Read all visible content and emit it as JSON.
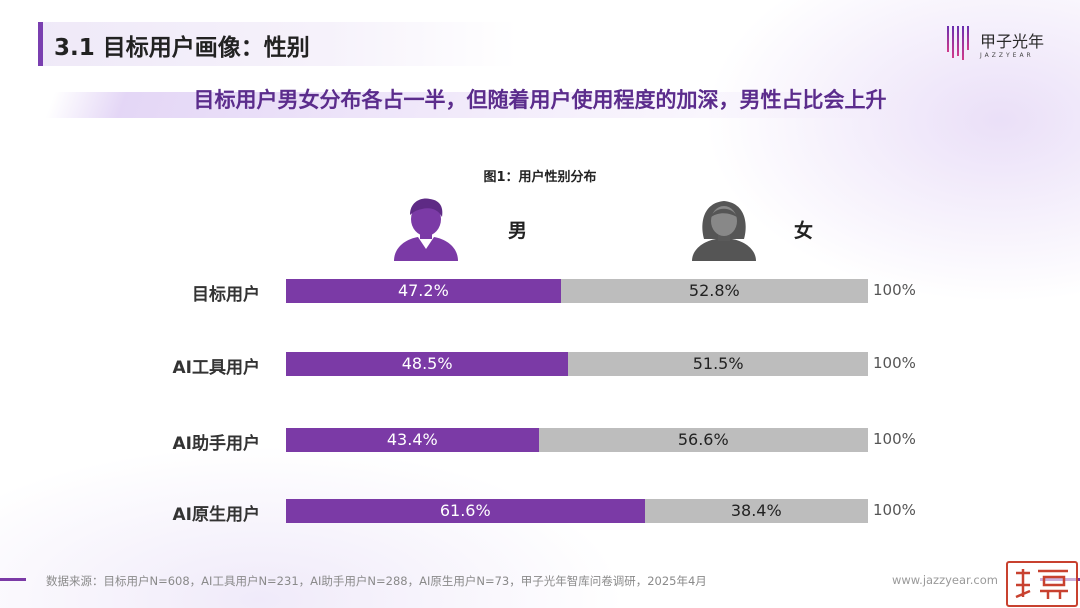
{
  "header": {
    "title": "3.1 目标用户画像：性别",
    "subtitle": "目标用户男女分布各占一半，但随着用户使用程度的加深，男性占比会上升"
  },
  "brand": {
    "name_cn": "甲子光年",
    "name_en": "JAZZYEAR",
    "url": "www.jazzyear.com"
  },
  "legend": {
    "male": "男",
    "female": "女"
  },
  "colors": {
    "accent": "#7a3fb0",
    "male": "#7b3aa6",
    "female": "#bdbdbd"
  },
  "chart_data": {
    "type": "bar",
    "orientation": "horizontal-stacked-100",
    "title": "图1：用户性别分布",
    "categories": [
      "目标用户",
      "AI工具用户",
      "AI助手用户",
      "AI原生用户"
    ],
    "series": [
      {
        "name": "男",
        "values": [
          47.2,
          48.5,
          43.4,
          61.6
        ]
      },
      {
        "name": "女",
        "values": [
          52.8,
          51.5,
          56.6,
          38.4
        ]
      }
    ],
    "value_labels": {
      "male": [
        "47.2%",
        "48.5%",
        "43.4%",
        "61.6%"
      ],
      "female": [
        "52.8%",
        "51.5%",
        "56.6%",
        "38.4%"
      ]
    },
    "totals": [
      "100%",
      "100%",
      "100%",
      "100%"
    ],
    "xlim": [
      0,
      100
    ]
  },
  "footer": {
    "source": "数据来源：目标用户N=608，AI工具用户N=231，AI助手用户N=288，AI原生用户N=73，甲子光年智库问卷调研，2025年4月"
  }
}
